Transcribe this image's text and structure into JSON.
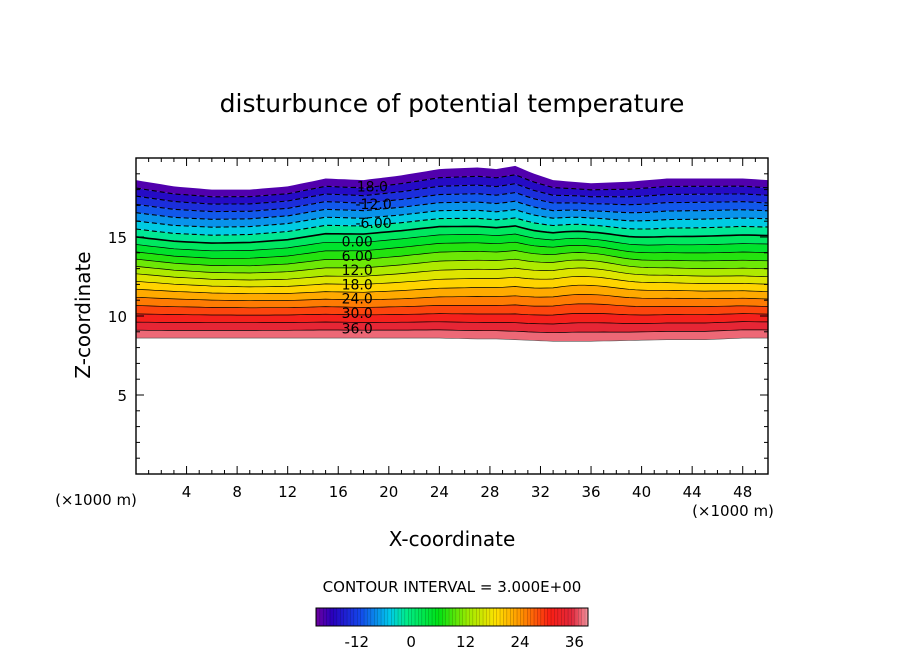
{
  "chart_data": {
    "type": "heatmap",
    "title": "disturbunce of potential temperature",
    "xlabel": "X-coordinate",
    "ylabel": "Z-coordinate",
    "x_unit": "(×1000 m)",
    "z_unit": "(×1000 m)",
    "xlim": [
      0,
      50
    ],
    "ylim": [
      0,
      20
    ],
    "x_ticks": [
      4,
      8,
      12,
      16,
      20,
      24,
      28,
      32,
      36,
      40,
      44,
      48
    ],
    "y_ticks": [
      5,
      10,
      15
    ],
    "contour_interval_label": "CONTOUR INTERVAL = 3.000E+00",
    "value_range": [
      -21,
      39
    ],
    "contour_labels": [
      {
        "text": "-18.0",
        "x": 18.5,
        "z": 18.2
      },
      {
        "text": "-12.0",
        "x": 18.8,
        "z": 17.1
      },
      {
        "text": "-6.00",
        "x": 18.8,
        "z": 15.9
      },
      {
        "text": "0.00",
        "x": 17.5,
        "z": 14.7
      },
      {
        "text": "6.00",
        "x": 17.5,
        "z": 13.8
      },
      {
        "text": "12.0",
        "x": 17.5,
        "z": 12.9
      },
      {
        "text": "18.0",
        "x": 17.5,
        "z": 12.0
      },
      {
        "text": "24.0",
        "x": 17.5,
        "z": 11.1
      },
      {
        "text": "30.0",
        "x": 17.5,
        "z": 10.2
      },
      {
        "text": "36.0",
        "x": 17.5,
        "z": 9.2
      }
    ],
    "boundaries": {
      "x": [
        0,
        3,
        6,
        9,
        12,
        15,
        18,
        21,
        24,
        27,
        28.5,
        30,
        31.5,
        33,
        36,
        39,
        42,
        45,
        48,
        50
      ],
      "top": [
        18.6,
        18.2,
        18.0,
        18.0,
        18.2,
        18.7,
        18.6,
        18.9,
        19.3,
        19.4,
        19.3,
        19.5,
        19.0,
        18.6,
        18.4,
        18.5,
        18.7,
        18.7,
        18.7,
        18.6
      ],
      "bottom": [
        8.6,
        8.6,
        8.6,
        8.6,
        8.6,
        8.6,
        8.6,
        8.6,
        8.6,
        8.55,
        8.55,
        8.5,
        8.45,
        8.4,
        8.4,
        8.45,
        8.5,
        8.5,
        8.6,
        8.6
      ]
    },
    "colorbar": {
      "min": -21,
      "max": 39,
      "tick_labels": [
        {
          "text": "-12",
          "value": -12
        },
        {
          "text": "0",
          "value": 0
        },
        {
          "text": "12",
          "value": 12
        },
        {
          "text": "24",
          "value": 24
        },
        {
          "text": "36",
          "value": 36
        }
      ]
    }
  }
}
